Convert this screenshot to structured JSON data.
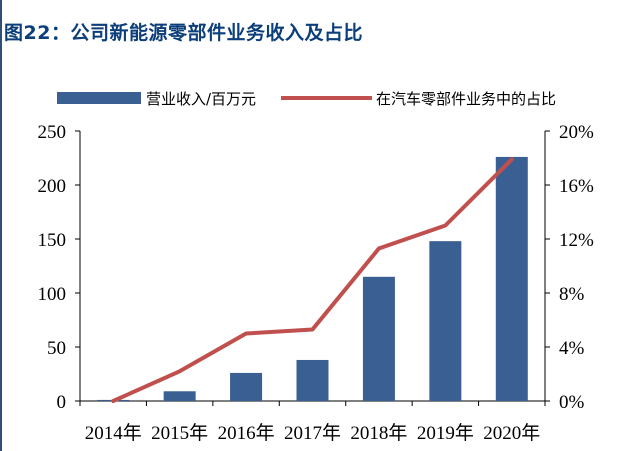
{
  "title": "图22：公司新能源零部件业务收入及占比",
  "colors": {
    "bar": "#3a5f93",
    "line": "#c0504d",
    "title": "#0b3e7a"
  },
  "chart_data": {
    "type": "bar",
    "categories": [
      "2014年",
      "2015年",
      "2016年",
      "2017年",
      "2018年",
      "2019年",
      "2020年"
    ],
    "series": [
      {
        "name": "营业收入/百万元",
        "type": "bar",
        "axis": "left",
        "values": [
          1,
          9,
          26,
          38,
          115,
          148,
          226
        ]
      },
      {
        "name": "在汽车零部件业务中的占比",
        "type": "line",
        "axis": "right",
        "values": [
          0.0,
          2.2,
          5.0,
          5.3,
          11.3,
          13.0,
          17.9
        ]
      }
    ],
    "ylim": [
      0,
      250
    ],
    "yticks": [
      "0",
      "50",
      "100",
      "150",
      "200",
      "250"
    ],
    "y2lim": [
      0,
      20
    ],
    "y2ticks": [
      "0%",
      "4%",
      "8%",
      "12%",
      "16%",
      "20%"
    ],
    "grid": false,
    "legend": "top"
  }
}
